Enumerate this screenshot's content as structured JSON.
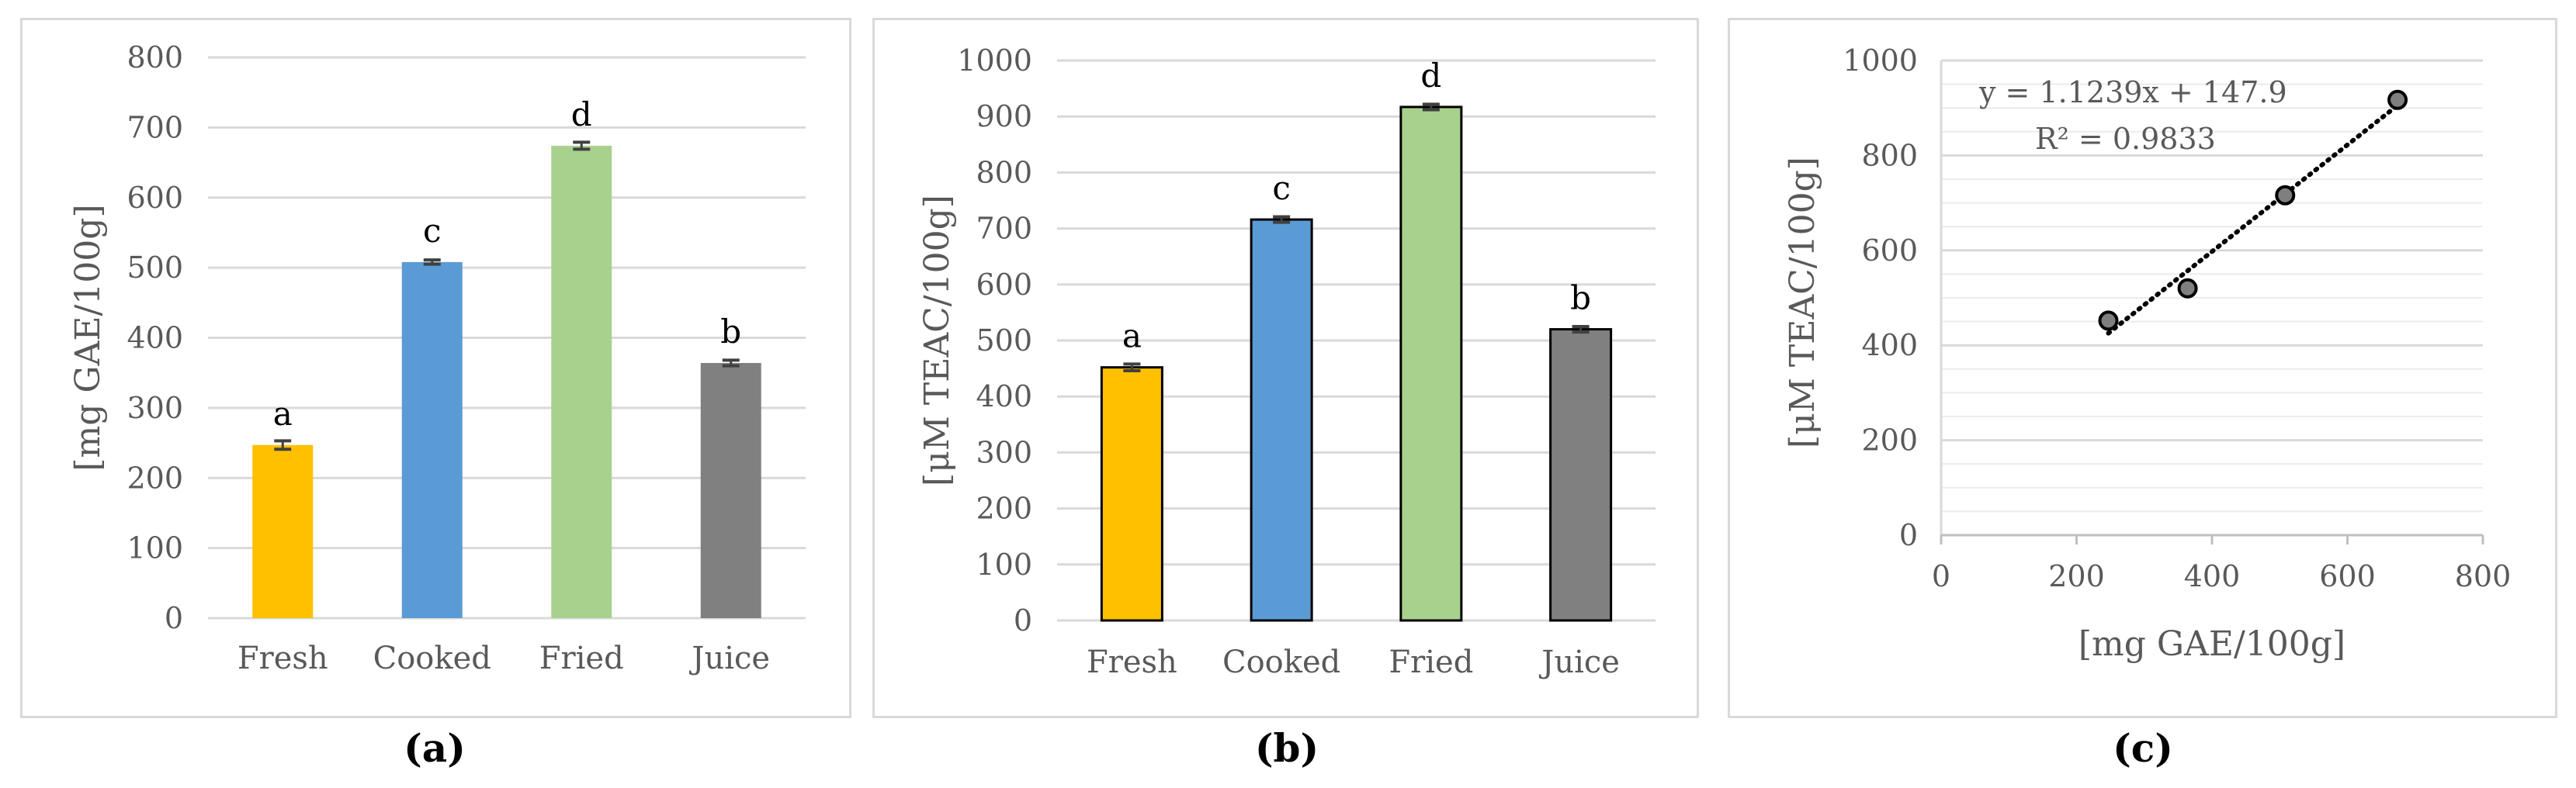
{
  "colors": {
    "fresh": "#ffc000",
    "cooked": "#5b9bd5",
    "fried": "#a9d18e",
    "juice": "#808080",
    "grid": "#d9d9d9",
    "axis_text": "#595959",
    "error": "#404040",
    "marker": "#404040"
  },
  "captions": [
    "(a)",
    "(b)",
    "(c)"
  ],
  "chart_data": [
    {
      "type": "bar",
      "ylabel": "[mg GAE/100g]",
      "xlabel": "",
      "categories": [
        "Fresh",
        "Cooked",
        "Fried",
        "Juice"
      ],
      "values": [
        247,
        508,
        674,
        364
      ],
      "errors": [
        6,
        3,
        5,
        4
      ],
      "letters": [
        "a",
        "c",
        "d",
        "b"
      ],
      "ylim": [
        0,
        800
      ],
      "yticks": [
        "0",
        "100",
        "200",
        "300",
        "400",
        "500",
        "600",
        "700",
        "800"
      ],
      "bar_outline": false,
      "grid": true
    },
    {
      "type": "bar",
      "ylabel": "[μM TEAC/100g]",
      "xlabel": "",
      "categories": [
        "Fresh",
        "Cooked",
        "Fried",
        "Juice"
      ],
      "values": [
        452,
        716,
        917,
        520
      ],
      "errors": [
        6,
        5,
        5,
        5
      ],
      "letters": [
        "a",
        "c",
        "d",
        "b"
      ],
      "ylim": [
        0,
        1000
      ],
      "yticks": [
        "0",
        "100",
        "200",
        "300",
        "400",
        "500",
        "600",
        "700",
        "800",
        "900",
        "1000"
      ],
      "bar_outline": true,
      "grid": true
    },
    {
      "type": "scatter",
      "xlabel": "[mg GAE/100g]",
      "ylabel": "[μM TEAC/100g]",
      "x": [
        247,
        364,
        508,
        674
      ],
      "y": [
        452,
        520,
        716,
        917
      ],
      "xlim": [
        0,
        800
      ],
      "ylim": [
        0,
        1000
      ],
      "xticks": [
        "0",
        "200",
        "400",
        "600",
        "800"
      ],
      "yticks": [
        "0",
        "200",
        "400",
        "600",
        "800",
        "1000"
      ],
      "trendline": {
        "slope": 1.1239,
        "intercept": 147.9,
        "style": "dotted"
      },
      "equation": "y = 1.1239x + 147.9",
      "r_squared": "R² = 0.9833",
      "grid": true
    }
  ]
}
